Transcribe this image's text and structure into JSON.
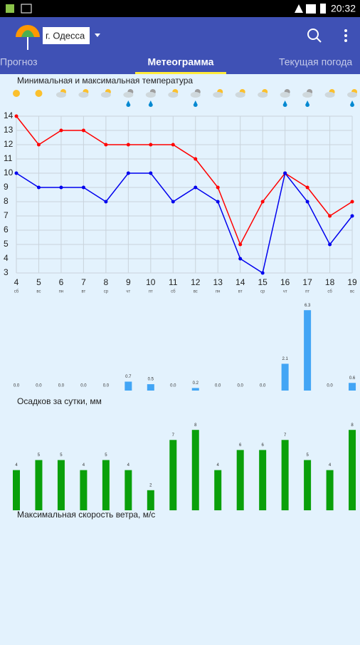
{
  "status_bar": {
    "time": "20:32"
  },
  "app_bar": {
    "city": "г. Одесса"
  },
  "tabs": [
    "Прогноз",
    "Метеограмма",
    "Текущая погода"
  ],
  "chart_data": [
    {
      "type": "line",
      "title": "Минимальная и максимальная температура",
      "categories": [
        "4",
        "5",
        "6",
        "7",
        "8",
        "9",
        "10",
        "11",
        "12",
        "13",
        "14",
        "15",
        "16",
        "17",
        "18",
        "19"
      ],
      "weekdays": [
        "сб",
        "вс",
        "пн",
        "вт",
        "ср",
        "чт",
        "пт",
        "сб",
        "вс",
        "пн",
        "вт",
        "ср",
        "чт",
        "пт",
        "сб",
        "вс"
      ],
      "series": [
        {
          "color": "#ff0000",
          "values": [
            14,
            12,
            13,
            13,
            12,
            12,
            12,
            12,
            11,
            9,
            5,
            8,
            10,
            9,
            7,
            8
          ]
        },
        {
          "color": "#0000ee",
          "values": [
            10,
            9,
            9,
            9,
            8,
            10,
            10,
            8,
            9,
            8,
            4,
            3,
            10,
            8,
            5,
            7
          ]
        }
      ],
      "ylim": [
        3,
        14
      ],
      "yticks": [
        3,
        4,
        5,
        6,
        7,
        8,
        9,
        10,
        11,
        12,
        13,
        14
      ],
      "grid": true
    },
    {
      "type": "bar",
      "title": "Осадков за сутки, мм",
      "color": "#42a5f5",
      "values": [
        0,
        0,
        0,
        0,
        0,
        0.7,
        0.5,
        0,
        0.2,
        0,
        0,
        0,
        2.1,
        6.3,
        0,
        0.6
      ],
      "value_labels": [
        "0.0",
        "0.0",
        "0.0",
        "0.0",
        "0.0",
        "0.7",
        "0.5",
        "0.0",
        "0.2",
        "0.0",
        "0.0",
        "0.0",
        "2.1",
        "6.3",
        "0.0",
        "0.6"
      ]
    },
    {
      "type": "bar",
      "title": "Максимальная скорость ветра, м/с",
      "color": "#0aa00a",
      "values": [
        4,
        5,
        5,
        4,
        5,
        4,
        2,
        7,
        8,
        4,
        6,
        6,
        7,
        5,
        4,
        8
      ]
    }
  ]
}
